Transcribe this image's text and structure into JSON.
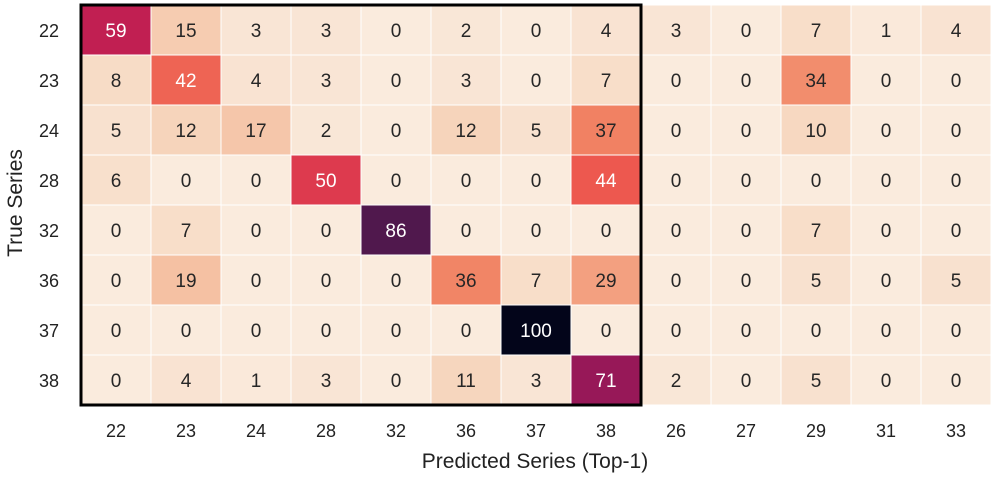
{
  "chart_data": {
    "type": "heatmap",
    "title": "",
    "xlabel": "Predicted Series (Top-1)",
    "ylabel": "True Series",
    "x_categories": [
      "22",
      "23",
      "24",
      "28",
      "32",
      "36",
      "37",
      "38",
      "26",
      "27",
      "29",
      "31",
      "33"
    ],
    "y_categories": [
      "22",
      "23",
      "24",
      "28",
      "32",
      "36",
      "37",
      "38"
    ],
    "values": [
      [
        59,
        15,
        3,
        3,
        0,
        2,
        0,
        4,
        3,
        0,
        7,
        1,
        4
      ],
      [
        8,
        42,
        4,
        3,
        0,
        3,
        0,
        7,
        0,
        0,
        34,
        0,
        0
      ],
      [
        5,
        12,
        17,
        2,
        0,
        12,
        5,
        37,
        0,
        0,
        10,
        0,
        0
      ],
      [
        6,
        0,
        0,
        50,
        0,
        0,
        0,
        44,
        0,
        0,
        0,
        0,
        0
      ],
      [
        0,
        7,
        0,
        0,
        86,
        0,
        0,
        0,
        0,
        0,
        7,
        0,
        0
      ],
      [
        0,
        19,
        0,
        0,
        0,
        36,
        7,
        29,
        0,
        0,
        5,
        0,
        5
      ],
      [
        0,
        0,
        0,
        0,
        0,
        0,
        100,
        0,
        0,
        0,
        0,
        0,
        0
      ],
      [
        0,
        4,
        1,
        3,
        0,
        11,
        3,
        71,
        2,
        0,
        5,
        0,
        0
      ]
    ],
    "value_range": [
      0,
      100
    ],
    "colormap": "rocket_r",
    "highlight_box": {
      "from_col": 0,
      "to_col": 7,
      "from_row": 0,
      "to_row": 7,
      "color": "#000000"
    },
    "cell_border_color": "#ffffff"
  }
}
